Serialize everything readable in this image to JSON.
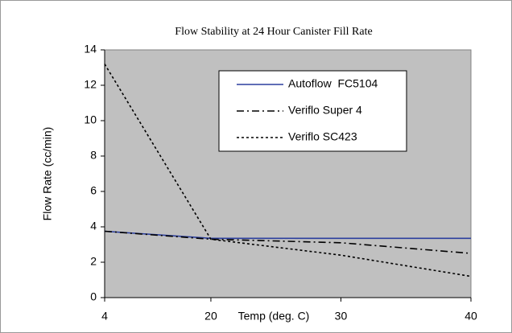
{
  "chart_data": {
    "type": "line",
    "title": "Flow Stability at 24 Hour Canister Fill Rate",
    "x_label": "Temp (deg. C)",
    "y_label": "Flow Rate (cc/min)",
    "categories": [
      "4",
      "20",
      "30",
      "40"
    ],
    "series": [
      {
        "name": "Autoflow  FC5104",
        "color": "#2c3f9e",
        "dash": "solid",
        "values": [
          3.75,
          3.35,
          3.35,
          3.35
        ]
      },
      {
        "name": "Veriflo Super 4",
        "color": "#000000",
        "dash": "dashdot",
        "values": [
          3.75,
          3.3,
          3.1,
          2.5
        ]
      },
      {
        "name": "Veriflo SC423",
        "color": "#000000",
        "dash": "dot",
        "values": [
          13.2,
          3.3,
          2.4,
          1.2
        ]
      }
    ],
    "ylim": [
      0,
      14
    ],
    "yticks": [
      0,
      2,
      4,
      6,
      8,
      10,
      12,
      14
    ],
    "plot_background": "#c0c0c0",
    "legend": "top-right"
  }
}
